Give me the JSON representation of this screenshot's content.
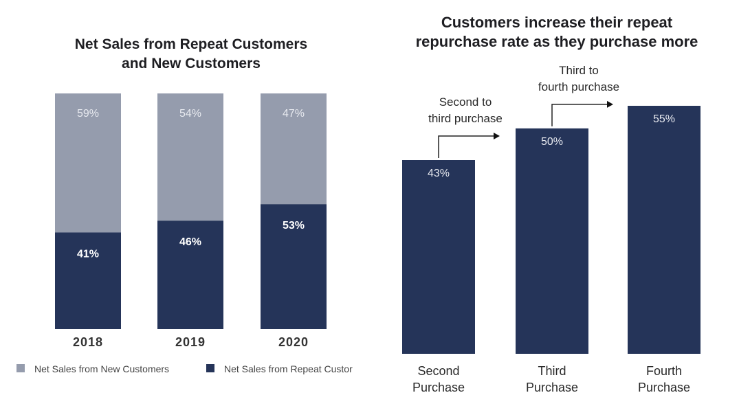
{
  "chart_data": [
    {
      "type": "bar",
      "stacked": true,
      "title": "Net Sales from Repeat Customers and New Customers",
      "title_lines": [
        "Net Sales from Repeat Customers",
        "and New Customers"
      ],
      "categories": [
        "2018",
        "2019",
        "2020"
      ],
      "series": [
        {
          "name": "Net Sales from Repeat Customers",
          "legend_label": "Net Sales from Repeat Custor",
          "color": "#253459",
          "values": [
            41,
            46,
            53
          ],
          "labels": [
            "41%",
            "46%",
            "53%"
          ]
        },
        {
          "name": "Net Sales from New Customers",
          "legend_label": "Net Sales from New Customers",
          "color": "#959cad",
          "values": [
            59,
            54,
            47
          ],
          "labels": [
            "59%",
            "54%",
            "47%"
          ]
        }
      ],
      "xlabel": "",
      "ylabel": "",
      "ylim": [
        0,
        100
      ],
      "grid": false,
      "legend": "bottom"
    },
    {
      "type": "bar",
      "title": "Customers increase their repeat repurchase rate as they purchase more",
      "title_lines": [
        "Customers increase their repeat",
        "repurchase rate as they purchase more"
      ],
      "categories": [
        "Second Purchase",
        "Third Purchase",
        "Fourth Purchase"
      ],
      "category_lines": [
        [
          "Second",
          "Purchase"
        ],
        [
          "Third",
          "Purchase"
        ],
        [
          "Fourth",
          "Purchase"
        ]
      ],
      "values": [
        43,
        50,
        55
      ],
      "labels": [
        "43%",
        "50%",
        "55%"
      ],
      "color": "#253459",
      "annotations": [
        {
          "lines": [
            "Second to",
            "third purchase"
          ],
          "from": 0,
          "to": 1
        },
        {
          "lines": [
            "Third to",
            "fourth purchase"
          ],
          "from": 1,
          "to": 2
        }
      ],
      "xlabel": "",
      "ylabel": "",
      "grid": false,
      "legend": "none"
    }
  ]
}
